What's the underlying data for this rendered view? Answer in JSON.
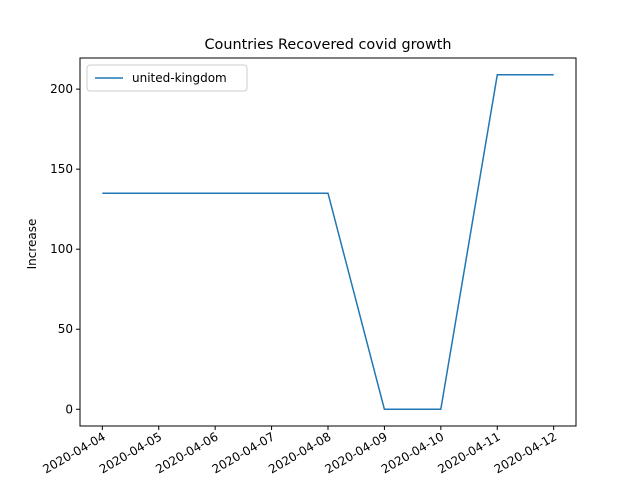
{
  "chart_data": {
    "type": "line",
    "title": "Countries Recovered covid growth",
    "xlabel": "",
    "ylabel": "Increase",
    "x": [
      "2020-04-04",
      "2020-04-05",
      "2020-04-06",
      "2020-04-07",
      "2020-04-08",
      "2020-04-09",
      "2020-04-10",
      "2020-04-11",
      "2020-04-12"
    ],
    "series": [
      {
        "name": "united-kingdom",
        "values": [
          135,
          135,
          135,
          135,
          135,
          0,
          0,
          209,
          209
        ],
        "color": "#1f77b4"
      }
    ],
    "ylim": [
      -10.45,
      219.45
    ],
    "yticks": [
      0,
      50,
      100,
      150,
      200
    ],
    "legend": "top-left",
    "grid": false
  }
}
